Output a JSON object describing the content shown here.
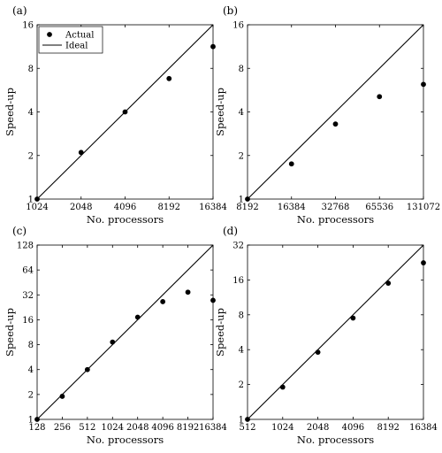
{
  "chart_data": [
    {
      "type": "scatter",
      "panel": "(a)",
      "xlabel": "No. processors",
      "ylabel": "Speed-up",
      "x_ticks": [
        1024,
        2048,
        4096,
        8192,
        16384
      ],
      "y_ticks": [
        1,
        2,
        4,
        8,
        16
      ],
      "xlim": [
        1024,
        16384
      ],
      "ylim": [
        1,
        16
      ],
      "x_scale": "log2",
      "y_scale": "log2",
      "legend": {
        "placement": "top-left",
        "entries": [
          "Actual",
          "Ideal"
        ]
      },
      "series": [
        {
          "name": "Actual",
          "kind": "points",
          "x": [
            1024,
            2048,
            4096,
            8192,
            16384
          ],
          "y": [
            1,
            2.1,
            4.0,
            6.8,
            11.3
          ]
        },
        {
          "name": "Ideal",
          "kind": "line",
          "x": [
            1024,
            16384
          ],
          "y": [
            1,
            16
          ]
        }
      ]
    },
    {
      "type": "scatter",
      "panel": "(b)",
      "xlabel": "No. processors",
      "ylabel": "Speed-up",
      "x_ticks": [
        8192,
        16384,
        32768,
        65536,
        131072
      ],
      "y_ticks": [
        1,
        2,
        4,
        8,
        16
      ],
      "xlim": [
        8192,
        131072
      ],
      "ylim": [
        1,
        16
      ],
      "x_scale": "log2",
      "y_scale": "log2",
      "series": [
        {
          "name": "Actual",
          "kind": "points",
          "x": [
            8192,
            16384,
            32768,
            65536,
            131072
          ],
          "y": [
            1,
            1.75,
            3.3,
            5.1,
            6.2
          ]
        },
        {
          "name": "Ideal",
          "kind": "line",
          "x": [
            8192,
            131072
          ],
          "y": [
            1,
            16
          ]
        }
      ]
    },
    {
      "type": "scatter",
      "panel": "(c)",
      "xlabel": "No. processors",
      "ylabel": "Speed-up",
      "x_ticks": [
        128,
        256,
        512,
        1024,
        2048,
        4096,
        8192,
        16384
      ],
      "y_ticks": [
        1,
        2,
        4,
        8,
        16,
        32,
        64,
        128
      ],
      "xlim": [
        128,
        16384
      ],
      "ylim": [
        1,
        128
      ],
      "x_scale": "log2",
      "y_scale": "log2",
      "series": [
        {
          "name": "Actual",
          "kind": "points",
          "x": [
            128,
            256,
            512,
            1024,
            2048,
            4096,
            8192,
            16384
          ],
          "y": [
            1,
            1.9,
            4.0,
            8.6,
            17.2,
            26.5,
            34.5,
            27.5
          ]
        },
        {
          "name": "Ideal",
          "kind": "line",
          "x": [
            128,
            16384
          ],
          "y": [
            1,
            128
          ]
        }
      ]
    },
    {
      "type": "scatter",
      "panel": "(d)",
      "xlabel": "No. processors",
      "ylabel": "Speed-up",
      "x_ticks": [
        512,
        1024,
        2048,
        4096,
        8192,
        16384
      ],
      "y_ticks": [
        1,
        2,
        4,
        8,
        16,
        32
      ],
      "xlim": [
        512,
        16384
      ],
      "ylim": [
        1,
        32
      ],
      "x_scale": "log2",
      "y_scale": "log2",
      "series": [
        {
          "name": "Actual",
          "kind": "points",
          "x": [
            512,
            1024,
            2048,
            4096,
            8192,
            16384
          ],
          "y": [
            1,
            1.9,
            3.8,
            7.5,
            15.0,
            22.5
          ]
        },
        {
          "name": "Ideal",
          "kind": "line",
          "x": [
            512,
            16384
          ],
          "y": [
            1,
            32
          ]
        }
      ]
    }
  ]
}
